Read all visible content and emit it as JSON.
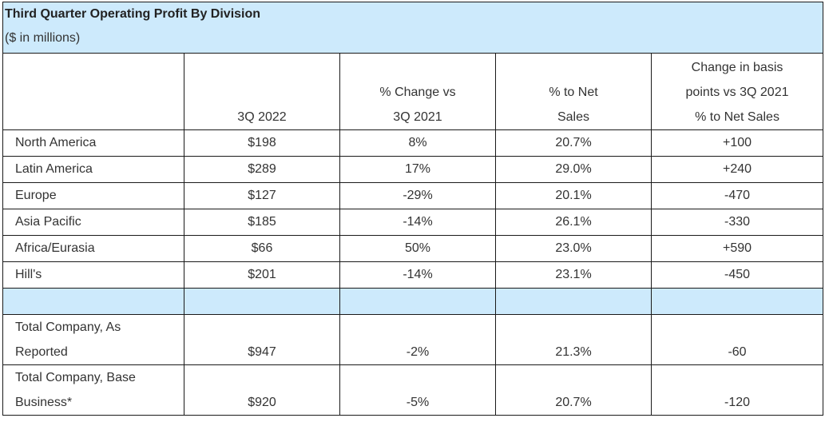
{
  "title": "Third Quarter Operating Profit By Division",
  "subtitle": "($ in millions)",
  "columns": [
    "",
    "3Q 2022",
    "% Change vs 3Q 2021",
    "% to Net Sales",
    "Change in basis points vs 3Q 2021 % to Net Sales"
  ],
  "column_lines": {
    "c1": [
      "3Q 2022"
    ],
    "c2": [
      "% Change vs",
      "3Q 2021"
    ],
    "c3": [
      "% to Net",
      "Sales"
    ],
    "c4": [
      "Change in basis",
      "points vs 3Q 2021",
      "% to Net Sales"
    ]
  },
  "rows": [
    {
      "label": "North America",
      "q3_2022": "$198",
      "change": "8%",
      "net_sales": "20.7%",
      "bps": "+100"
    },
    {
      "label": "Latin America",
      "q3_2022": "$289",
      "change": "17%",
      "net_sales": "29.0%",
      "bps": "+240"
    },
    {
      "label": "Europe",
      "q3_2022": "$127",
      "change": "-29%",
      "net_sales": "20.1%",
      "bps": "-470"
    },
    {
      "label": "Asia Pacific",
      "q3_2022": "$185",
      "change": "-14%",
      "net_sales": "26.1%",
      "bps": "-330"
    },
    {
      "label": "Africa/Eurasia",
      "q3_2022": "$66",
      "change": "50%",
      "net_sales": "23.0%",
      "bps": "+590"
    },
    {
      "label": "Hill's",
      "q3_2022": "$201",
      "change": "-14%",
      "net_sales": "23.1%",
      "bps": "-450"
    }
  ],
  "totals": [
    {
      "label_lines": [
        "Total Company, As",
        "Reported"
      ],
      "q3_2022": "$947",
      "change": "-2%",
      "net_sales": "21.3%",
      "bps": "-60"
    },
    {
      "label_lines": [
        "Total Company, Base",
        "Business*"
      ],
      "q3_2022": "$920",
      "change": "-5%",
      "net_sales": "20.7%",
      "bps": "-120"
    }
  ],
  "colors": {
    "header_bg": "#cdeafc",
    "border": "#1a1a1a",
    "text": "#333333"
  }
}
